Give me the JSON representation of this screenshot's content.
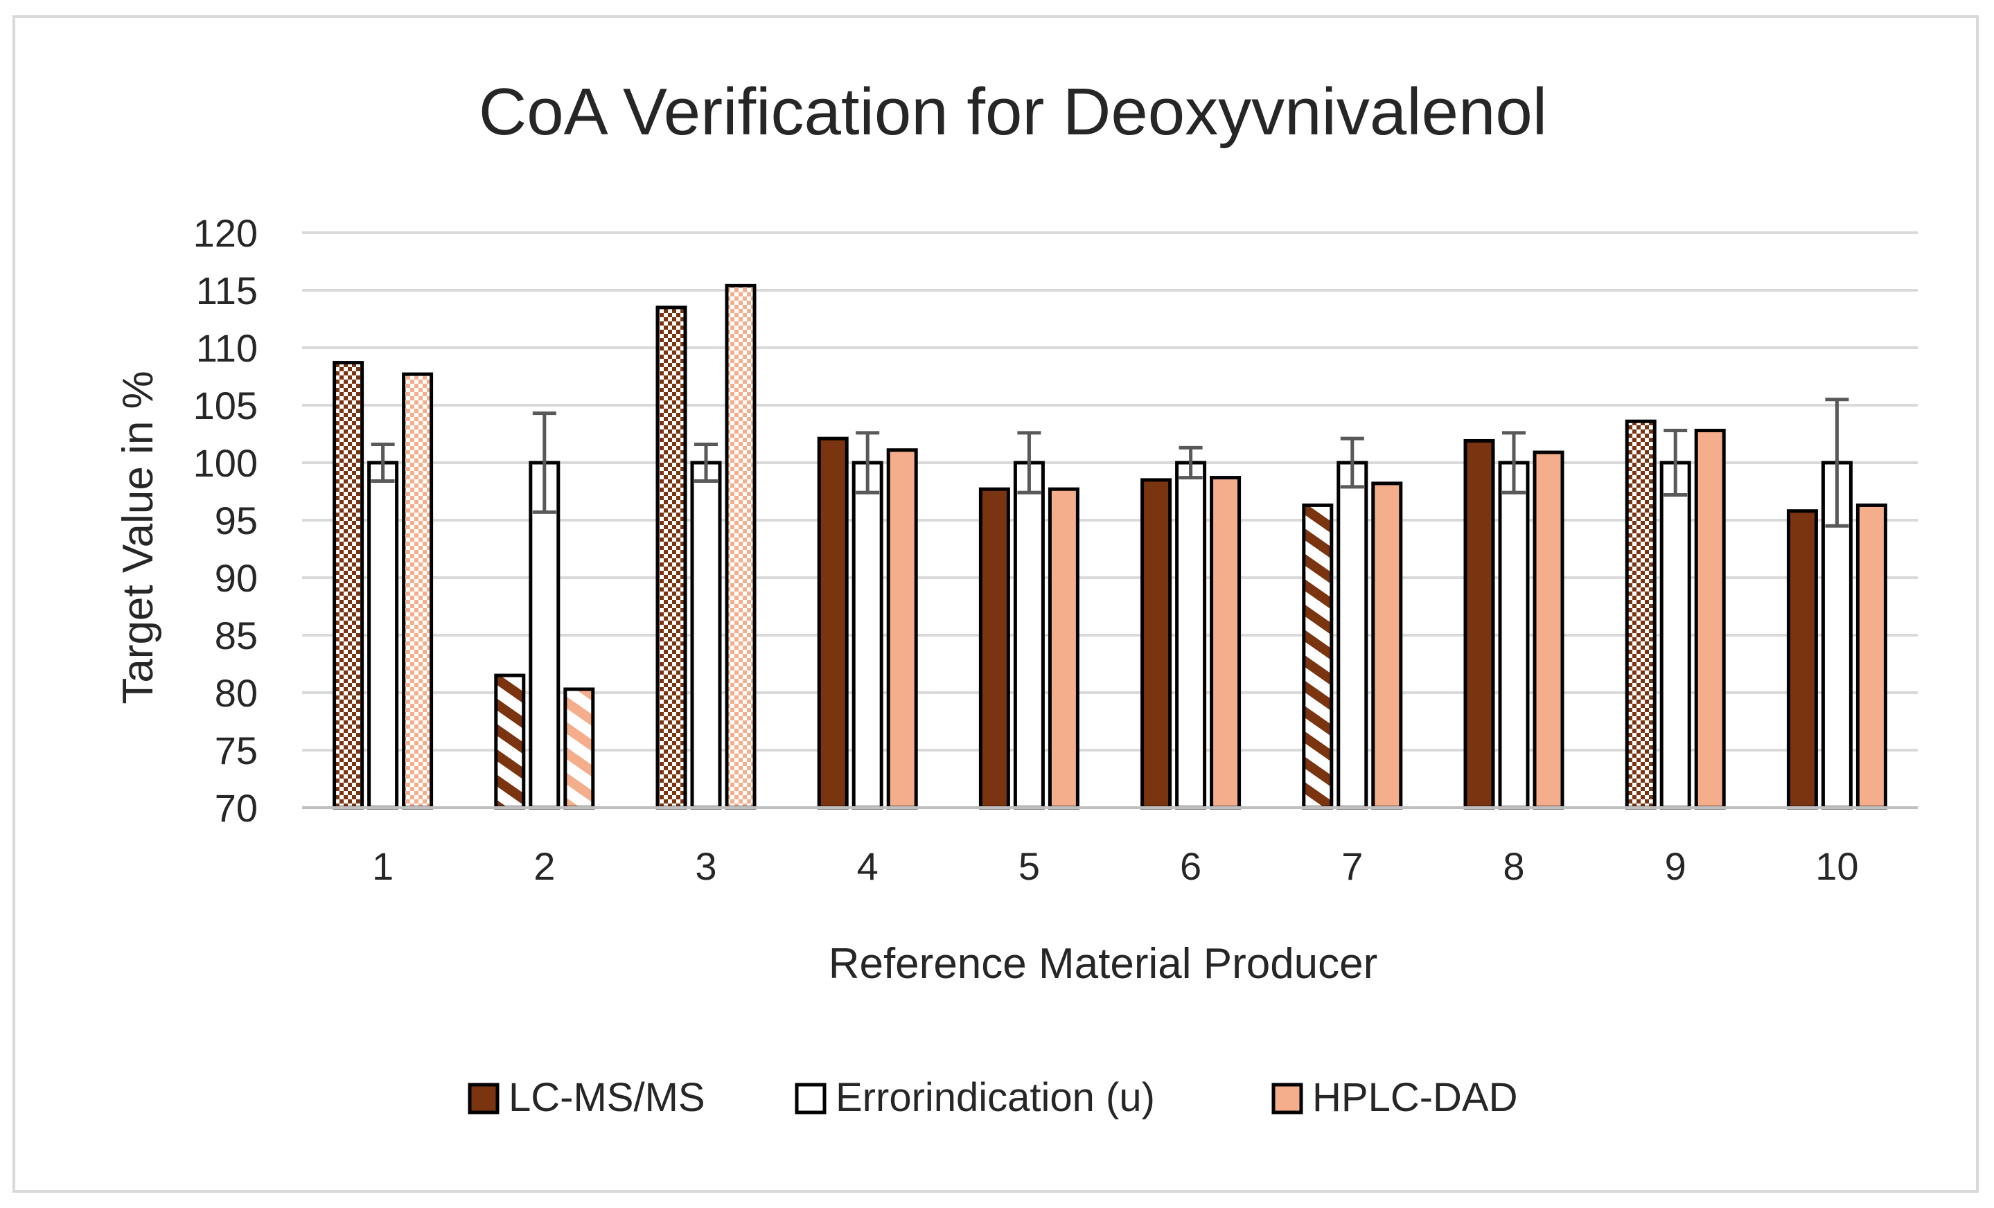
{
  "chart_data": {
    "type": "bar",
    "title": "CoA Verification for Deoxyvnivalenol",
    "xlabel": "Reference Material Producer",
    "ylabel": "Target Value in %",
    "ylim": [
      70,
      120
    ],
    "yticks": [
      70,
      75,
      80,
      85,
      90,
      95,
      100,
      105,
      110,
      115,
      120
    ],
    "grid": true,
    "legend_position": "bottom",
    "categories": [
      "1",
      "2",
      "3",
      "4",
      "5",
      "6",
      "7",
      "8",
      "9",
      "10"
    ],
    "series": [
      {
        "name": "LC-MS/MS",
        "color": "#7a3410",
        "values": [
          108.7,
          81.5,
          113.5,
          102.1,
          97.7,
          98.5,
          96.3,
          101.9,
          103.6,
          95.8
        ],
        "patterns": [
          "checker",
          "hatch",
          "checker",
          "solid",
          "solid",
          "solid",
          "hatch",
          "solid",
          "checker",
          "solid"
        ]
      },
      {
        "name": "Errorindication (u)",
        "color": "#ffffff",
        "values": [
          100,
          100,
          100,
          100,
          100,
          100,
          100,
          100,
          100,
          100
        ],
        "error": [
          1.6,
          4.3,
          1.6,
          2.6,
          2.6,
          1.3,
          2.1,
          2.6,
          2.8,
          5.5
        ]
      },
      {
        "name": "HPLC-DAD",
        "color": "#f4ae8b",
        "values": [
          107.7,
          80.3,
          115.4,
          101.1,
          97.7,
          98.7,
          98.2,
          100.9,
          102.8,
          96.3
        ],
        "patterns": [
          "checker",
          "hatch",
          "checker",
          "solid",
          "solid",
          "solid",
          "solid",
          "solid",
          "solid",
          "solid"
        ]
      }
    ]
  }
}
